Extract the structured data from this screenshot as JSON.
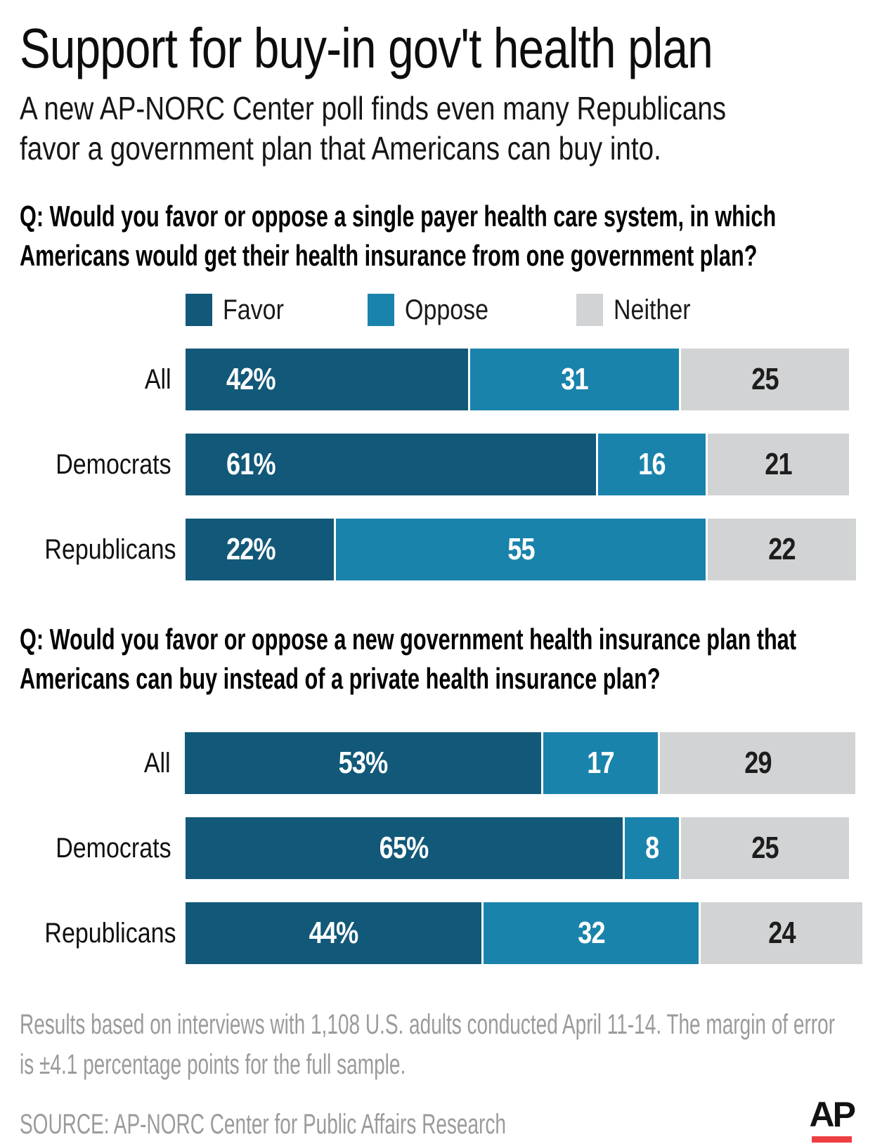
{
  "header": {
    "title": "Support for buy-in gov't health plan",
    "subtitle_lines": [
      "A new AP-NORC Center poll finds even many Republicans",
      "favor a government plan that Americans can buy into."
    ]
  },
  "legend": {
    "items": [
      {
        "label": "Favor",
        "color": "#125878"
      },
      {
        "label": "Oppose",
        "color": "#1a83ab"
      },
      {
        "label": "Neither",
        "color": "#d2d3d4"
      }
    ]
  },
  "chart_data": [
    {
      "type": "bar",
      "orientation": "horizontal",
      "stacked": true,
      "unit": "percent",
      "question_lines": [
        "Q: Would you favor or oppose a single payer health care system, in which",
        "Americans would get their health insurance from one government plan?"
      ],
      "categories": [
        "All",
        "Democrats",
        "Republicans"
      ],
      "series": [
        {
          "name": "Favor",
          "values": [
            42,
            61,
            22
          ]
        },
        {
          "name": "Oppose",
          "values": [
            31,
            16,
            55
          ]
        },
        {
          "name": "Neither",
          "values": [
            25,
            21,
            22
          ]
        }
      ],
      "value_labels": [
        [
          "42%",
          "31",
          "25"
        ],
        [
          "61%",
          "16",
          "21"
        ],
        [
          "22%",
          "55",
          "22"
        ]
      ],
      "favor_label_align": "left",
      "xlim": [
        0,
        100
      ],
      "grid": false,
      "legend_position": "top"
    },
    {
      "type": "bar",
      "orientation": "horizontal",
      "stacked": true,
      "unit": "percent",
      "question_lines": [
        "Q: Would you favor or oppose a new government health insurance plan that",
        "Americans can buy instead of a private health insurance plan?"
      ],
      "categories": [
        "All",
        "Democrats",
        "Republicans"
      ],
      "series": [
        {
          "name": "Favor",
          "values": [
            53,
            65,
            44
          ]
        },
        {
          "name": "Oppose",
          "values": [
            17,
            8,
            32
          ]
        },
        {
          "name": "Neither",
          "values": [
            29,
            25,
            24
          ]
        }
      ],
      "value_labels": [
        [
          "53%",
          "17",
          "29"
        ],
        [
          "65%",
          "8",
          "25"
        ],
        [
          "44%",
          "32",
          "24"
        ]
      ],
      "favor_label_align": "center",
      "xlim": [
        0,
        100
      ],
      "grid": false,
      "legend_position": "none"
    }
  ],
  "footer": {
    "note_lines": [
      "Results based on interviews with 1,108 U.S. adults conducted April 11-14. The margin of error",
      "is ±4.1 percentage points for the full sample."
    ],
    "source": "SOURCE: AP-NORC Center for Public Affairs Research",
    "logo_text": "AP",
    "logo_bar_color": "#ef3e42"
  }
}
